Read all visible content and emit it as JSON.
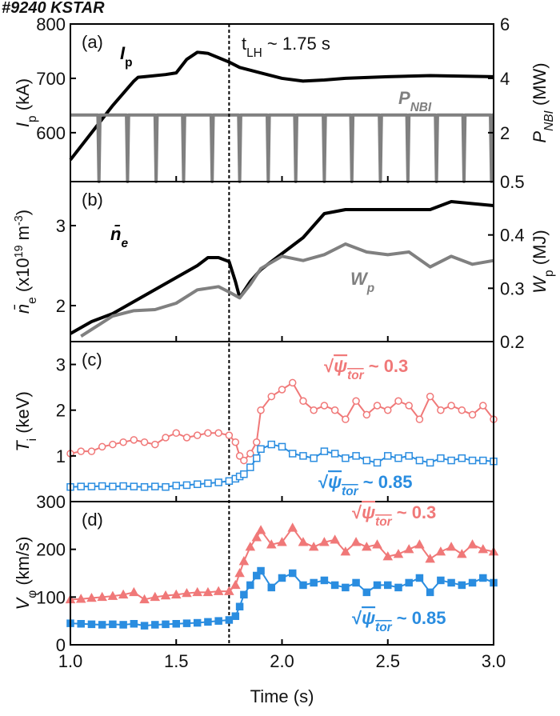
{
  "figure_title": "#9240 KSTAR",
  "chart_data": [
    {
      "type": "line",
      "panel_label": "(a)",
      "xlim": [
        1,
        3
      ],
      "ylim": [
        510,
        800
      ],
      "yticks": [
        600,
        700,
        800
      ],
      "y2lim": [
        0.2,
        6
      ],
      "y2ticks": [
        2,
        4,
        6
      ],
      "ylabel": [
        {
          "text": "I",
          "italic": true
        },
        {
          "text": "p",
          "sub": true
        },
        {
          "text": " (kA)"
        }
      ],
      "y2label": [
        {
          "text": "P",
          "italic": true
        },
        {
          "text": "NBI",
          "sub": true,
          "italic": true
        },
        {
          "text": " (MW)"
        }
      ],
      "annotation": [
        {
          "text": "t"
        },
        {
          "text": "LH",
          "sub": true
        },
        {
          "text": " ~ 1.75 s"
        }
      ],
      "vline": 1.75,
      "series": [
        {
          "name": [
            {
              "text": "I",
              "italic": true
            },
            {
              "text": "p",
              "sub": true
            }
          ],
          "color": "#000000",
          "x": [
            1.0,
            1.1,
            1.2,
            1.3,
            1.32,
            1.35,
            1.45,
            1.5,
            1.55,
            1.6,
            1.65,
            1.7,
            1.75,
            1.8,
            1.9,
            2.0,
            2.1,
            2.2,
            2.3,
            2.5,
            2.7,
            3.0
          ],
          "values": [
            550,
            600,
            650,
            695,
            702,
            703,
            707,
            710,
            735,
            748,
            746,
            738,
            730,
            720,
            710,
            700,
            695,
            697,
            700,
            703,
            705,
            703
          ]
        },
        {
          "name": [
            {
              "text": "P",
              "italic": true
            },
            {
              "text": "NBI",
              "sub": true,
              "italic": true
            }
          ],
          "color": "#808080",
          "axis": "y2",
          "x": [
            1.0,
            1.13,
            1.135,
            1.14,
            1.265,
            1.27,
            1.275,
            1.4,
            1.405,
            1.41,
            1.53,
            1.535,
            1.54,
            1.665,
            1.67,
            1.675,
            1.795,
            1.8,
            1.805,
            1.93,
            1.935,
            1.94,
            2.06,
            2.065,
            2.07,
            2.195,
            2.2,
            2.205,
            2.325,
            2.33,
            2.335,
            2.46,
            2.465,
            2.47,
            2.59,
            2.595,
            2.6,
            2.725,
            2.73,
            2.735,
            2.855,
            2.86,
            2.865,
            2.985,
            2.99,
            2.995,
            3.0
          ],
          "values": [
            2.65,
            2.65,
            0.2,
            2.65,
            2.65,
            0.2,
            2.65,
            2.65,
            0.2,
            2.65,
            2.65,
            0.2,
            2.65,
            2.65,
            0.2,
            2.65,
            2.65,
            0.2,
            2.65,
            2.65,
            0.2,
            2.65,
            2.65,
            0.2,
            2.65,
            2.65,
            0.2,
            2.65,
            2.65,
            0.2,
            2.65,
            2.65,
            0.2,
            2.65,
            2.65,
            0.2,
            2.65,
            2.65,
            0.2,
            2.65,
            2.65,
            0.2,
            2.65,
            2.65,
            0.2,
            2.65,
            2.65
          ]
        }
      ]
    },
    {
      "type": "line",
      "panel_label": "(b)",
      "xlim": [
        1,
        3
      ],
      "ylim": [
        1.55,
        3.55
      ],
      "yticks": [
        2,
        3
      ],
      "y2lim": [
        0.2,
        0.5
      ],
      "y2ticks": [
        0.2,
        0.3,
        0.4,
        0.5
      ],
      "ylabel": [
        {
          "text": "n̄",
          "italic": true
        },
        {
          "text": "e",
          "sub": true
        },
        {
          "text": " (x10"
        },
        {
          "text": "19",
          "sup": true
        },
        {
          "text": " m"
        },
        {
          "text": "-3",
          "sup": true
        },
        {
          "text": ")"
        }
      ],
      "y2label": [
        {
          "text": "W",
          "italic": true
        },
        {
          "text": "p",
          "sub": true
        },
        {
          "text": " (MJ)"
        }
      ],
      "series": [
        {
          "name": [
            {
              "text": "n̄",
              "italic": true
            },
            {
              "text": "e",
              "sub": true,
              "italic": true
            }
          ],
          "color": "#000000",
          "x": [
            1.0,
            1.1,
            1.2,
            1.3,
            1.4,
            1.5,
            1.6,
            1.65,
            1.7,
            1.75,
            1.78,
            1.8,
            1.85,
            1.9,
            2.0,
            2.1,
            2.2,
            2.3,
            2.5,
            2.7,
            2.8,
            3.0
          ],
          "values": [
            1.65,
            1.8,
            1.9,
            2.05,
            2.2,
            2.35,
            2.5,
            2.6,
            2.6,
            2.55,
            2.3,
            2.1,
            2.3,
            2.45,
            2.65,
            2.85,
            3.15,
            3.2,
            3.2,
            3.2,
            3.3,
            3.25
          ]
        },
        {
          "name": [
            {
              "text": "W",
              "italic": true
            },
            {
              "text": "p",
              "sub": true,
              "italic": true
            }
          ],
          "color": "#808080",
          "axis": "y2",
          "x": [
            1.05,
            1.2,
            1.3,
            1.4,
            1.5,
            1.6,
            1.7,
            1.75,
            1.8,
            1.85,
            1.9,
            2.0,
            2.1,
            2.2,
            2.3,
            2.4,
            2.5,
            2.6,
            2.7,
            2.8,
            2.9,
            3.0
          ],
          "values": [
            0.21,
            0.248,
            0.258,
            0.26,
            0.272,
            0.297,
            0.303,
            0.293,
            0.282,
            0.307,
            0.337,
            0.36,
            0.352,
            0.363,
            0.383,
            0.368,
            0.363,
            0.368,
            0.34,
            0.36,
            0.345,
            0.352
          ]
        }
      ]
    },
    {
      "type": "line",
      "panel_label": "(c)",
      "xlim": [
        1,
        3
      ],
      "ylim": [
        0,
        3.5
      ],
      "yticks": [
        1,
        2,
        3
      ],
      "ylabel": [
        {
          "text": "T",
          "italic": true
        },
        {
          "text": "i",
          "sub": true
        },
        {
          "text": " (keV)"
        }
      ],
      "series": [
        {
          "name": [
            {
              "text": "√"
            },
            {
              "text": "ψ",
              "italic": true,
              "overline": true
            },
            {
              "text": "tor",
              "sub": true,
              "italic": true,
              "overline": true
            },
            {
              "text": " ~ 0.3"
            }
          ],
          "color": "#f07878",
          "marker": "circle",
          "filled": false,
          "x": [
            1.0,
            1.05,
            1.1,
            1.15,
            1.2,
            1.25,
            1.3,
            1.35,
            1.4,
            1.45,
            1.5,
            1.55,
            1.6,
            1.65,
            1.7,
            1.75,
            1.78,
            1.8,
            1.82,
            1.85,
            1.88,
            1.9,
            1.95,
            2.0,
            2.05,
            2.1,
            2.15,
            2.2,
            2.25,
            2.3,
            2.35,
            2.4,
            2.45,
            2.5,
            2.55,
            2.6,
            2.65,
            2.7,
            2.75,
            2.8,
            2.85,
            2.9,
            2.95,
            3.0
          ],
          "values": [
            1.05,
            1.1,
            1.1,
            1.2,
            1.25,
            1.3,
            1.35,
            1.3,
            1.25,
            1.4,
            1.5,
            1.4,
            1.45,
            1.5,
            1.5,
            1.45,
            1.3,
            1.0,
            0.9,
            1.05,
            1.3,
            2.0,
            2.3,
            2.45,
            2.6,
            2.2,
            2.0,
            2.1,
            2.0,
            1.8,
            2.2,
            1.9,
            2.1,
            2.0,
            2.2,
            2.1,
            1.8,
            2.3,
            2.0,
            2.1,
            2.0,
            1.9,
            2.1,
            1.8
          ]
        },
        {
          "name": [
            {
              "text": "√"
            },
            {
              "text": "ψ",
              "italic": true,
              "overline": true
            },
            {
              "text": "tor",
              "sub": true,
              "italic": true,
              "overline": true
            },
            {
              "text": " ~ 0.85"
            }
          ],
          "color": "#2a8de0",
          "marker": "square",
          "filled": false,
          "x": [
            1.0,
            1.05,
            1.1,
            1.15,
            1.2,
            1.25,
            1.3,
            1.35,
            1.4,
            1.45,
            1.5,
            1.55,
            1.6,
            1.65,
            1.7,
            1.75,
            1.78,
            1.8,
            1.82,
            1.85,
            1.88,
            1.9,
            1.95,
            2.0,
            2.05,
            2.1,
            2.15,
            2.2,
            2.25,
            2.3,
            2.35,
            2.4,
            2.45,
            2.5,
            2.55,
            2.6,
            2.65,
            2.7,
            2.75,
            2.8,
            2.85,
            2.9,
            2.95,
            3.0
          ],
          "values": [
            0.32,
            0.33,
            0.33,
            0.34,
            0.33,
            0.34,
            0.33,
            0.32,
            0.33,
            0.32,
            0.35,
            0.36,
            0.38,
            0.4,
            0.42,
            0.45,
            0.5,
            0.55,
            0.6,
            0.75,
            0.95,
            1.15,
            1.25,
            1.2,
            1.05,
            1.0,
            0.95,
            1.1,
            1.05,
            0.95,
            1.0,
            0.9,
            0.85,
            1.0,
            0.95,
            1.0,
            0.9,
            0.85,
            0.95,
            0.9,
            0.95,
            0.9,
            0.9,
            0.88
          ]
        }
      ]
    },
    {
      "type": "line",
      "panel_label": "(d)",
      "xlim": [
        1,
        3
      ],
      "ylim": [
        0,
        300
      ],
      "yticks": [
        0,
        100,
        200,
        300
      ],
      "xticks": [
        {
          "value": 1,
          "label": "1.0"
        },
        {
          "value": 1.5,
          "label": "1.5"
        },
        {
          "value": 2,
          "label": "2.0"
        },
        {
          "value": 2.5,
          "label": "2.5"
        },
        {
          "value": 3,
          "label": "3.0"
        }
      ],
      "xlabel": "Time (s)",
      "ylabel": [
        {
          "text": "V",
          "italic": true
        },
        {
          "text": "φ",
          "sub": true
        },
        {
          "text": " (km/s)"
        }
      ],
      "series": [
        {
          "name": [
            {
              "text": "√"
            },
            {
              "text": "ψ",
              "italic": true,
              "overline": true
            },
            {
              "text": "tor",
              "sub": true,
              "italic": true,
              "overline": true
            },
            {
              "text": " ~ 0.3"
            }
          ],
          "color": "#f07878",
          "marker": "triangle",
          "filled": true,
          "x": [
            1.0,
            1.05,
            1.1,
            1.15,
            1.2,
            1.25,
            1.3,
            1.35,
            1.4,
            1.45,
            1.5,
            1.55,
            1.6,
            1.65,
            1.7,
            1.75,
            1.78,
            1.8,
            1.82,
            1.85,
            1.88,
            1.9,
            1.95,
            2.0,
            2.05,
            2.1,
            2.15,
            2.2,
            2.25,
            2.3,
            2.35,
            2.4,
            2.45,
            2.5,
            2.55,
            2.6,
            2.65,
            2.7,
            2.75,
            2.8,
            2.85,
            2.9,
            2.95,
            3.0
          ],
          "values": [
            95,
            96,
            98,
            100,
            102,
            105,
            110,
            95,
            100,
            103,
            105,
            108,
            110,
            110,
            112,
            112,
            125,
            150,
            175,
            205,
            225,
            240,
            210,
            215,
            245,
            215,
            205,
            215,
            220,
            195,
            215,
            205,
            210,
            185,
            190,
            200,
            210,
            180,
            195,
            205,
            190,
            210,
            200,
            195
          ]
        },
        {
          "name": [
            {
              "text": "√"
            },
            {
              "text": "ψ",
              "italic": true,
              "overline": true
            },
            {
              "text": "tor",
              "sub": true,
              "italic": true,
              "overline": true
            },
            {
              "text": " ~ 0.85"
            }
          ],
          "color": "#2a8de0",
          "marker": "square",
          "filled": true,
          "x": [
            1.0,
            1.05,
            1.1,
            1.15,
            1.2,
            1.25,
            1.3,
            1.35,
            1.4,
            1.45,
            1.5,
            1.55,
            1.6,
            1.65,
            1.7,
            1.75,
            1.78,
            1.8,
            1.82,
            1.85,
            1.88,
            1.9,
            1.95,
            2.0,
            2.05,
            2.1,
            2.15,
            2.2,
            2.25,
            2.3,
            2.35,
            2.4,
            2.45,
            2.5,
            2.55,
            2.6,
            2.65,
            2.7,
            2.75,
            2.8,
            2.85,
            2.9,
            2.95,
            3.0
          ],
          "values": [
            45,
            44,
            43,
            42,
            43,
            42,
            44,
            40,
            42,
            43,
            44,
            45,
            46,
            48,
            50,
            52,
            60,
            80,
            105,
            125,
            145,
            155,
            120,
            140,
            150,
            125,
            130,
            135,
            125,
            120,
            130,
            110,
            125,
            125,
            120,
            130,
            140,
            110,
            135,
            130,
            125,
            130,
            140,
            130
          ]
        }
      ]
    }
  ]
}
